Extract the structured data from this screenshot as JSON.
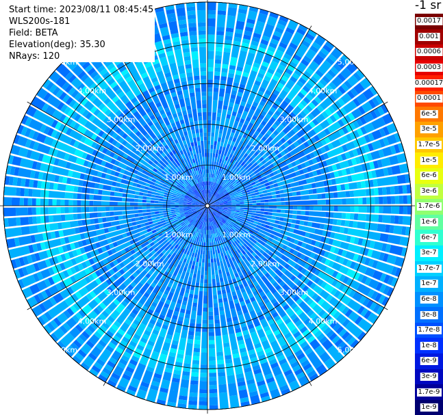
{
  "header": {
    "start_time": "Start time: 2023/08/11 08:45:45",
    "instrument": "WLS200s-181",
    "field": "Field: BETA",
    "elevation": "Elevation(deg): 35.30",
    "nrays": "NRays: 120"
  },
  "colorbar": {
    "title": "-1 sr",
    "labels": [
      "0.0017",
      "0.001",
      "0.0006",
      "0.0003",
      "0.00017",
      "0.0001",
      "6e-5",
      "3e-5",
      "1.7e-5",
      "1e-5",
      "6e-6",
      "3e-6",
      "1.7e-6",
      "1e-6",
      "6e-7",
      "3e-7",
      "1.7e-7",
      "1e-7",
      "6e-8",
      "3e-8",
      "1.7e-8",
      "1e-8",
      "6e-9",
      "3e-9",
      "1.7e-9",
      "1e-9"
    ],
    "colors": [
      "#7a0000",
      "#a00000",
      "#c80000",
      "#e60000",
      "#ff2000",
      "#ff4a00",
      "#ff7800",
      "#ffa000",
      "#ffc800",
      "#ffec00",
      "#e8ff10",
      "#c0ff40",
      "#90ff70",
      "#60ffa0",
      "#30ffd0",
      "#00f0ff",
      "#00d0ff",
      "#00b0ff",
      "#0090ff",
      "#0070ff",
      "#0050ff",
      "#0030ff",
      "#0018e0",
      "#0008c0",
      "#00009a",
      "#000070"
    ]
  },
  "chart_data": {
    "type": "heatmap",
    "projection": "polar-ppi",
    "field": "BETA",
    "units": "sr-1",
    "elevation_deg": 35.3,
    "n_rays": 120,
    "range_rings_km": [
      1.0,
      2.0,
      3.0,
      4.0,
      5.0
    ],
    "ring_labels": [
      "1.00km",
      "2.00km",
      "3.00km",
      "4.00km",
      "5.00km"
    ],
    "max_range_km": 5.0,
    "spoke_angles_deg": [
      0,
      30,
      60,
      90,
      120,
      150,
      180,
      210,
      240,
      270,
      300,
      330
    ],
    "color_scale": "log",
    "value_range": [
      1e-09,
      0.0017
    ],
    "features": [
      {
        "description": "near-range (0-0.5 km) backscatter",
        "approx_value": "1e-8"
      },
      {
        "description": "0.5-4 km typical backscatter",
        "approx_value": "3e-8"
      },
      {
        "description": "enhanced ring near 3.5-4 km",
        "approx_value": "1e-7"
      },
      {
        "description": "outer ring near 4.5-5 km",
        "approx_value": "3e-8"
      }
    ]
  }
}
